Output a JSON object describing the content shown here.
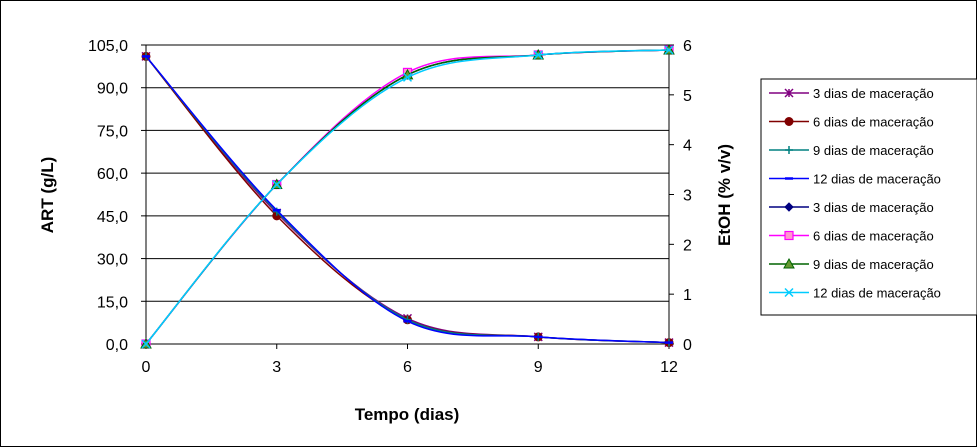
{
  "chart_data": {
    "type": "line",
    "title": "",
    "xlabel": "Tempo (dias)",
    "ylabel_left": "ART (g/L)",
    "ylabel_right": "EtOH (% v/v)",
    "x_ticks": [
      "0",
      "3",
      "6",
      "9",
      "12"
    ],
    "y_left_ticks": [
      "0,0",
      "15,0",
      "30,0",
      "45,0",
      "60,0",
      "75,0",
      "90,0",
      "105,0"
    ],
    "y_right_ticks": [
      "0",
      "1",
      "2",
      "3",
      "4",
      "5",
      "6"
    ],
    "xlim": [
      0,
      12
    ],
    "ylim_left": [
      0,
      105
    ],
    "ylim_right": [
      0,
      6
    ],
    "grid": "horizontal",
    "legend_position": "right",
    "x": [
      0,
      3,
      6,
      9,
      12
    ],
    "series": [
      {
        "name": "3 dias de maceração",
        "axis": "left",
        "color": "#800080",
        "marker": "star",
        "values": [
          101.0,
          46.0,
          9.0,
          2.5,
          0.5
        ]
      },
      {
        "name": "6 dias de maceração",
        "axis": "left",
        "color": "#800000",
        "marker": "circle",
        "values": [
          101.0,
          45.0,
          8.5,
          2.5,
          0.5
        ]
      },
      {
        "name": "9 dias de maceração",
        "axis": "left",
        "color": "#008080",
        "marker": "plus",
        "values": [
          101.0,
          46.5,
          8.5,
          2.5,
          0.5
        ]
      },
      {
        "name": "12 dias de maceração",
        "axis": "left",
        "color": "#0000FF",
        "marker": "dash",
        "values": [
          101.0,
          47.0,
          8.0,
          2.5,
          0.5
        ]
      },
      {
        "name": "3 dias de maceração",
        "axis": "right",
        "color": "#000080",
        "marker": "diamond",
        "values": [
          0.0,
          3.2,
          5.4,
          5.8,
          5.9
        ]
      },
      {
        "name": "6 dias de maceração",
        "axis": "right",
        "color": "#FF00FF",
        "marker": "square",
        "values": [
          0.0,
          3.2,
          5.45,
          5.8,
          5.9
        ]
      },
      {
        "name": "9 dias de maceração",
        "axis": "right",
        "color": "#006400",
        "marker": "triangle",
        "values": [
          0.0,
          3.2,
          5.4,
          5.8,
          5.9
        ]
      },
      {
        "name": "12 dias de maceração",
        "axis": "right",
        "color": "#00CCFF",
        "marker": "x",
        "values": [
          0.0,
          3.2,
          5.35,
          5.8,
          5.9
        ]
      }
    ]
  }
}
